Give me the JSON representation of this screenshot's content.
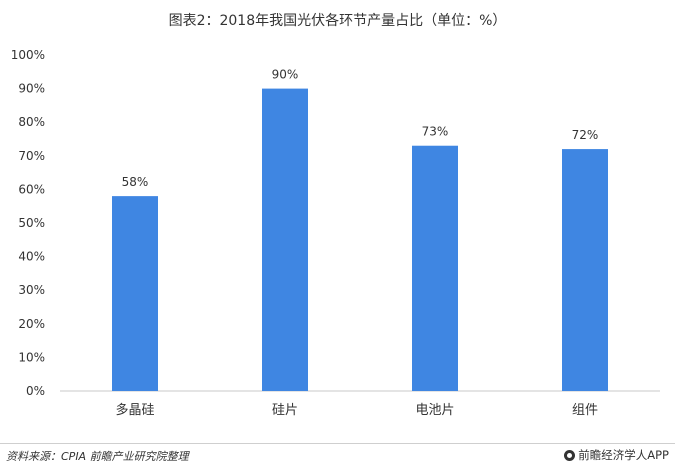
{
  "header": {
    "title": "图表2：2018年我国光伏各环节产量占比（单位：%）"
  },
  "footer": {
    "source": "资料来源：CPIA 前瞻产业研究院整理",
    "brand": "前瞻经济学人APP"
  },
  "colors": {
    "bar": "#3f86e2",
    "axis": "#c9c9c9",
    "text": "#333333"
  },
  "chart_data": {
    "type": "bar",
    "title": "图表2：2018年我国光伏各环节产量占比（单位：%）",
    "categories": [
      "多晶硅",
      "硅片",
      "电池片",
      "组件"
    ],
    "values": [
      58,
      90,
      73,
      72
    ],
    "data_labels": [
      "58%",
      "90%",
      "73%",
      "72%"
    ],
    "yticks": [
      "0%",
      "10%",
      "20%",
      "30%",
      "40%",
      "50%",
      "60%",
      "70%",
      "80%",
      "90%",
      "100%"
    ],
    "ylim": [
      0,
      100
    ],
    "xlabel": "",
    "ylabel": "",
    "grid": false,
    "legend": "none"
  }
}
